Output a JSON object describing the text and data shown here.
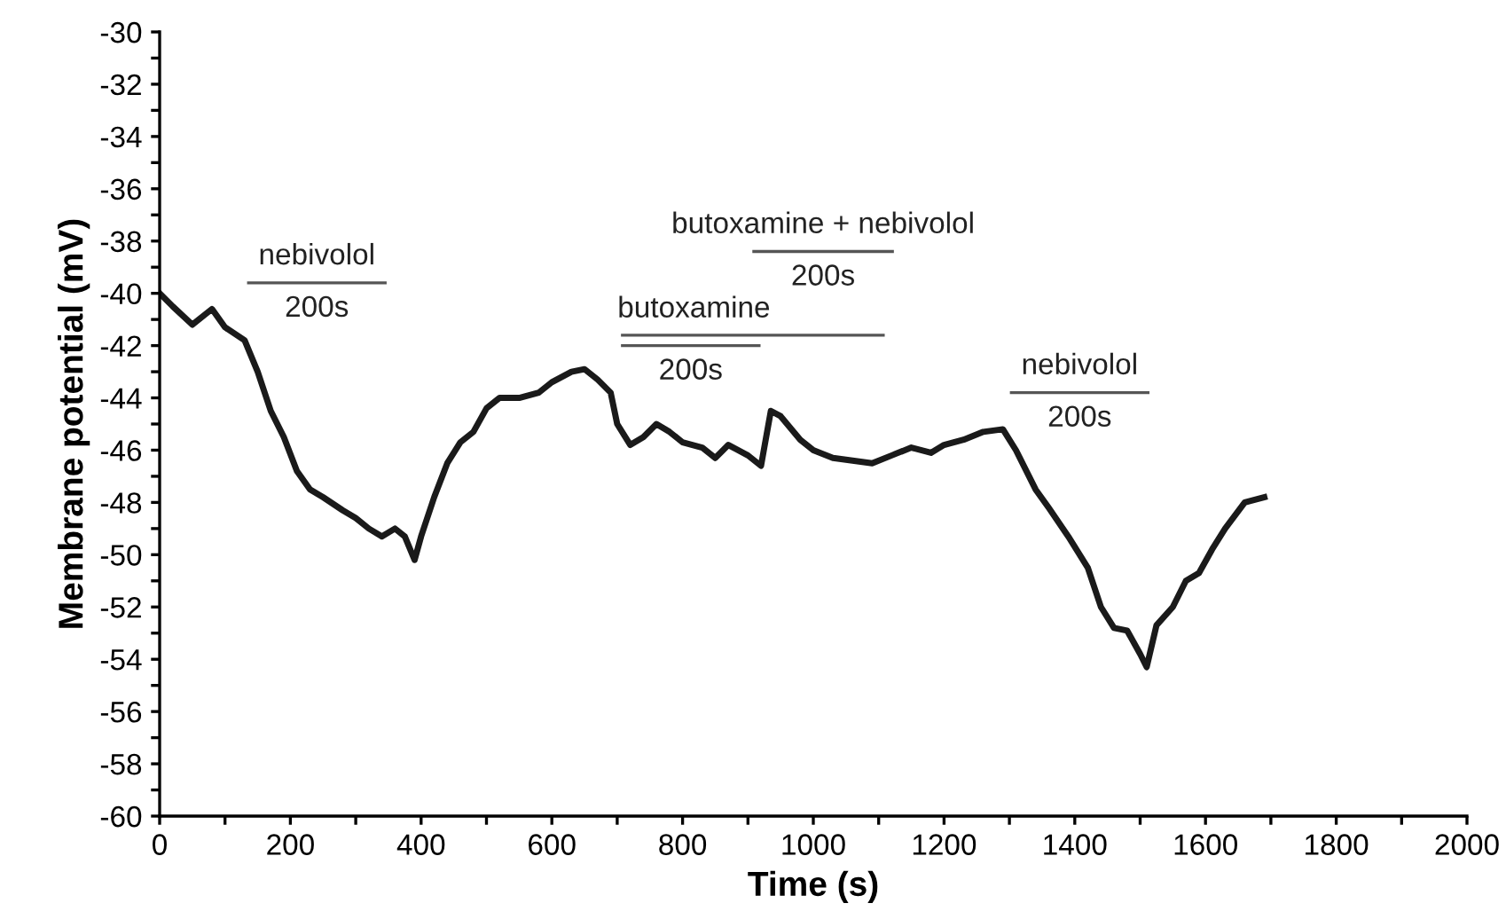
{
  "chart_data": {
    "type": "line",
    "xlabel": "Time (s)",
    "ylabel": "Membrane potential (mV)",
    "xlim": [
      0,
      2000
    ],
    "ylim": [
      -60,
      -30
    ],
    "xticks": [
      0,
      {
        "value": 100,
        "label": null
      },
      200,
      {
        "value": 300,
        "label": null
      },
      400,
      {
        "value": 500,
        "label": null
      },
      600,
      {
        "value": 700,
        "label": null
      },
      800,
      {
        "value": 900,
        "label": null
      },
      1000,
      {
        "value": 1100,
        "label": null
      },
      1200,
      {
        "value": 1300,
        "label": null
      },
      1400,
      {
        "value": 1500,
        "label": null
      },
      1600,
      {
        "value": 1700,
        "label": null
      },
      1800,
      {
        "value": 1900,
        "label": null
      },
      2000
    ],
    "yticks": [
      -60,
      {
        "value": -59,
        "label": null
      },
      -58,
      {
        "value": -57,
        "label": null
      },
      -56,
      {
        "value": -55,
        "label": null
      },
      -54,
      {
        "value": -53,
        "label": null
      },
      -52,
      {
        "value": -51,
        "label": null
      },
      -50,
      {
        "value": -49,
        "label": null
      },
      -48,
      {
        "value": -47,
        "label": null
      },
      -46,
      {
        "value": -45,
        "label": null
      },
      -44,
      {
        "value": -43,
        "label": null
      },
      -42,
      {
        "value": -41,
        "label": null
      },
      -40,
      {
        "value": -39,
        "label": null
      },
      -38,
      {
        "value": -37,
        "label": null
      },
      -36,
      {
        "value": -35,
        "label": null
      },
      -34,
      {
        "value": -33,
        "label": null
      },
      -32,
      {
        "value": -31,
        "label": null
      },
      -30
    ],
    "grid": false,
    "marker": "none",
    "line_style": "solid",
    "series": [
      {
        "color": "#1a1a1a",
        "x": [
          0,
          20,
          50,
          80,
          100,
          130,
          150,
          170,
          190,
          210,
          230,
          250,
          280,
          300,
          320,
          340,
          360,
          375,
          390,
          400,
          420,
          440,
          460,
          480,
          500,
          520,
          550,
          580,
          600,
          630,
          650,
          670,
          690,
          700,
          720,
          740,
          760,
          780,
          800,
          830,
          850,
          870,
          900,
          920,
          935,
          950,
          980,
          1000,
          1030,
          1060,
          1090,
          1120,
          1150,
          1180,
          1200,
          1230,
          1260,
          1290,
          1310,
          1340,
          1360,
          1390,
          1420,
          1440,
          1460,
          1480,
          1500,
          1510,
          1525,
          1550,
          1570,
          1590,
          1610,
          1630,
          1660,
          1690
        ],
        "values": [
          -40.0,
          -40.5,
          -41.2,
          -40.6,
          -41.3,
          -41.8,
          -43.0,
          -44.5,
          -45.5,
          -46.8,
          -47.5,
          -47.8,
          -48.3,
          -48.6,
          -49.0,
          -49.3,
          -49.0,
          -49.3,
          -50.2,
          -49.3,
          -47.8,
          -46.5,
          -45.7,
          -45.3,
          -44.4,
          -44.0,
          -44.0,
          -43.8,
          -43.4,
          -43.0,
          -42.9,
          -43.3,
          -43.8,
          -45.0,
          -45.8,
          -45.5,
          -45.0,
          -45.3,
          -45.7,
          -45.9,
          -46.3,
          -45.8,
          -46.2,
          -46.6,
          -44.5,
          -44.7,
          -45.6,
          -46.0,
          -46.3,
          -46.4,
          -46.5,
          -46.2,
          -45.9,
          -46.1,
          -45.8,
          -45.6,
          -45.3,
          -45.2,
          -46.0,
          -47.5,
          -48.2,
          -49.3,
          -50.5,
          -52.0,
          -52.8,
          -52.9,
          -53.8,
          -54.3,
          -52.7,
          -52.0,
          -51.0,
          -50.7,
          -49.8,
          -49.0,
          -48.0,
          -47.8
        ]
      },
      {
        "color": "#555555",
        "x": [
          136,
          345
        ],
        "values": [
          -39.6,
          -39.6
        ]
      },
      {
        "color": "#555555",
        "x": [
          909,
          1121
        ],
        "values": [
          -38.4,
          -38.4
        ]
      },
      {
        "color": "#555555",
        "x": [
          708,
          1107
        ],
        "values": [
          -41.6,
          -41.6
        ]
      },
      {
        "color": "#555555",
        "x": [
          708,
          917
        ],
        "values": [
          -42.0,
          -42.0
        ]
      },
      {
        "color": "#555555",
        "x": [
          1303,
          1512
        ],
        "values": [
          -43.8,
          -43.8
        ]
      }
    ],
    "annotations": [
      "nebivolol",
      "200s",
      "butoxamine + nebivolol",
      "200s",
      "butoxamine",
      "200s",
      "nebivolol",
      "200s"
    ]
  }
}
